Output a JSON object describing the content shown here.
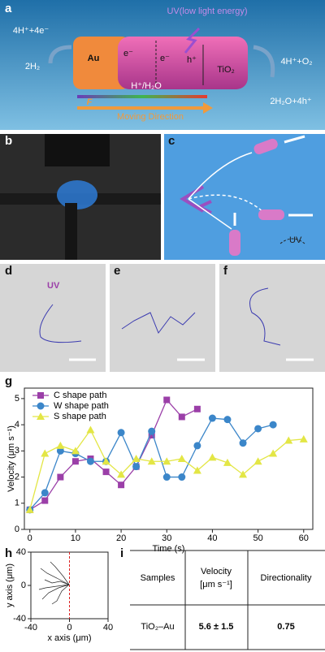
{
  "panel_labels": [
    "a",
    "b",
    "c",
    "d",
    "e",
    "f",
    "g",
    "h",
    "i"
  ],
  "panel_a": {
    "uv": "UV(low light energy)",
    "left_top": "4H⁺+4e⁻",
    "left_bottom": "2H₂",
    "au": "Au",
    "electron_1": "e⁻",
    "electron_2": "e⁻",
    "hole": "h⁺",
    "tio2": "TiO₂",
    "right_top": "4H⁺+O₂",
    "right_bottom": "2H₂O+4h⁺",
    "medium": "H⁺/H₂O",
    "force": "F",
    "direction": "Moving Direction"
  },
  "panel_c": {
    "uv": "UV"
  },
  "panel_d": {
    "uv": "UV"
  },
  "chart_data": [
    {
      "type": "line",
      "xlabel": "Time (s)",
      "ylabel": "Velocity (μm s⁻¹)",
      "x": [
        0,
        3.3,
        6.7,
        10,
        13.3,
        16.7,
        20,
        23.3,
        26.7,
        30,
        33.3,
        36.7,
        40,
        43.3,
        46.7,
        50,
        53.3,
        56.7,
        60
      ],
      "series": [
        {
          "name": "C shape path",
          "color": "#9b3fa8",
          "marker": "square",
          "values": [
            0.75,
            1.1,
            2.0,
            2.6,
            2.7,
            2.2,
            1.7,
            2.4,
            3.6,
            4.95,
            4.3,
            4.6,
            null,
            null,
            null,
            null,
            null,
            null,
            null
          ]
        },
        {
          "name": "W shape path",
          "color": "#3b86c9",
          "marker": "circle",
          "values": [
            0.75,
            1.4,
            3.0,
            2.9,
            2.6,
            2.6,
            3.7,
            2.4,
            3.75,
            2.0,
            2.0,
            3.2,
            4.25,
            4.2,
            3.3,
            3.85,
            4.0,
            null,
            null
          ]
        },
        {
          "name": "S shape path",
          "color": "#e3e645",
          "marker": "triangle",
          "values": [
            0.75,
            2.9,
            3.2,
            3.0,
            3.8,
            2.6,
            2.1,
            2.7,
            2.6,
            2.6,
            2.7,
            2.25,
            2.75,
            2.55,
            2.1,
            2.6,
            2.9,
            3.4,
            3.45
          ]
        }
      ],
      "xlim": [
        -1.2,
        62
      ],
      "ylim": [
        0,
        5.4
      ],
      "xticks": [
        0,
        10,
        20,
        30,
        40,
        50,
        60
      ],
      "yticks": [
        0,
        1,
        2,
        3,
        4,
        5
      ],
      "legend": "upper-left"
    },
    {
      "type": "frame",
      "xlabel": "x axis (μm)",
      "ylabel": "y axis (μm)",
      "xlim": [
        -40,
        40
      ],
      "ylim": [
        -40,
        40
      ],
      "xticks": [
        -40,
        0,
        40
      ],
      "yticks": [
        -40,
        0,
        40
      ]
    }
  ],
  "table": {
    "header": [
      "Samples",
      [
        "Velocity",
        "[μm s⁻¹]"
      ],
      "Directionality"
    ],
    "rows": [
      [
        "TiO₂–Au",
        "5.6 ± 1.5",
        "0.75"
      ]
    ]
  }
}
